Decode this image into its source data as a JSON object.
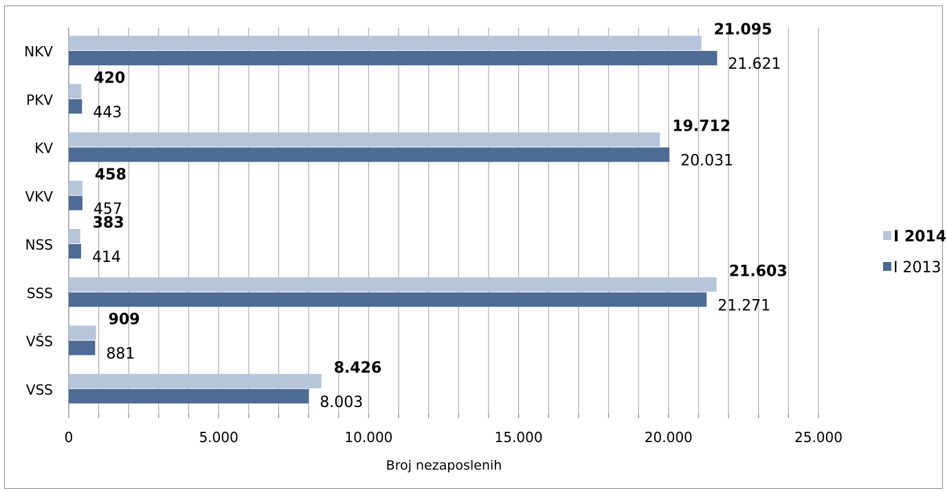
{
  "chart_data": {
    "type": "bar",
    "orientation": "horizontal",
    "categories": [
      "NKV",
      "PKV",
      "KV",
      "VKV",
      "NSS",
      "SSS",
      "VŠS",
      "VSS"
    ],
    "series": [
      {
        "name": "I 2014",
        "color": "#b7c5da",
        "values": [
          21095,
          420,
          19712,
          458,
          383,
          21603,
          909,
          8426
        ],
        "labels": [
          "21.095",
          "420",
          "19.712",
          "458",
          "383",
          "21.603",
          "909",
          "8.426"
        ]
      },
      {
        "name": "I 2013",
        "color": "#4d6b94",
        "values": [
          21621,
          443,
          20031,
          457,
          414,
          21271,
          881,
          8003
        ],
        "labels": [
          "21.621",
          "443",
          "20.031",
          "457",
          "414",
          "21.271",
          "881",
          "8.003"
        ]
      }
    ],
    "xlabel": "Broj nezaposlenih",
    "xlim": [
      0,
      25000
    ],
    "x_ticks": [
      0,
      5000,
      10000,
      15000,
      20000,
      25000
    ],
    "x_tick_labels": [
      "0",
      "5.000",
      "10.000",
      "15.000",
      "20.000",
      "25.000"
    ],
    "grid": true,
    "legend_position": "right"
  }
}
